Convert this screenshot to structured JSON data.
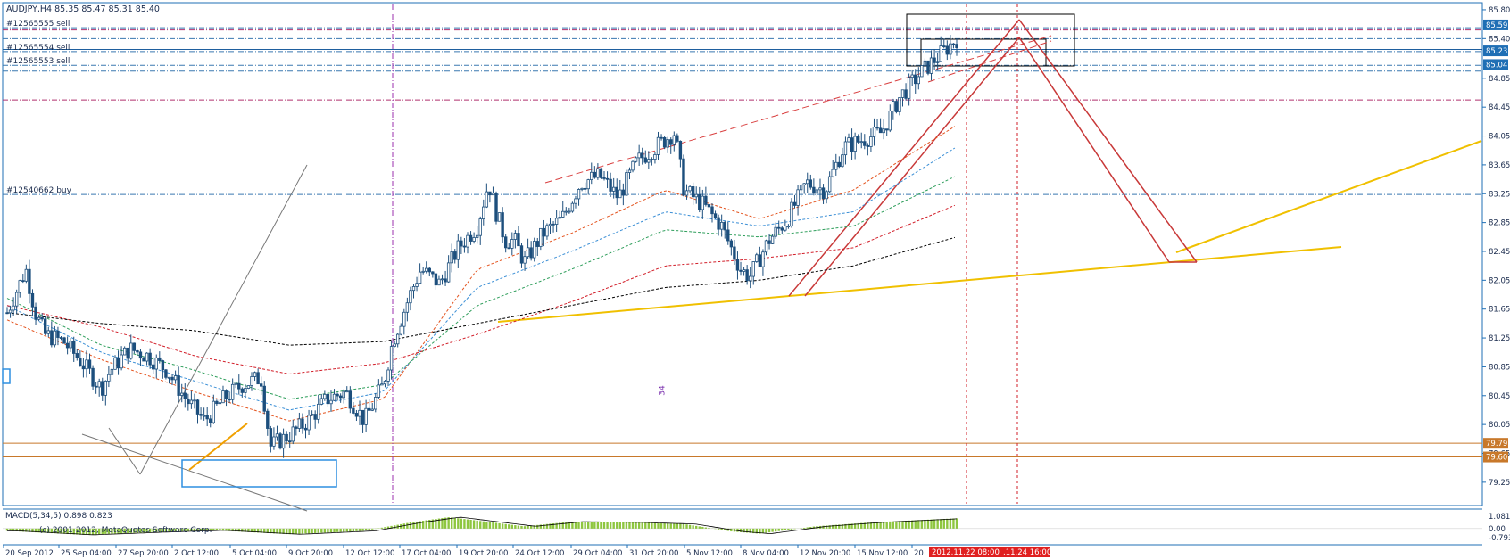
{
  "chart_data": {
    "type": "candlestick",
    "title": "AUDJPY,H4  85.35 85.47 85.31 85.40",
    "symbol": "AUDJPY",
    "timeframe": "H4",
    "ohlc_last": {
      "open": 85.35,
      "high": 85.47,
      "low": 85.31,
      "close": 85.4
    },
    "ylim": [
      79.1,
      85.75
    ],
    "grid": false,
    "y_ticks": [
      "85.80",
      "85.40",
      "84.85",
      "84.45",
      "84.05",
      "83.65",
      "83.25",
      "82.85",
      "82.45",
      "82.05",
      "81.65",
      "81.25",
      "80.85",
      "80.45",
      "80.05",
      "79.65",
      "79.25"
    ],
    "x_ticks": [
      "20 Sep 2012",
      "25 Sep 04:00",
      "27 Sep 20:00",
      "2 Oct 12:00",
      "5 Oct 04:00",
      "9 Oct 20:00",
      "12 Oct 12:00",
      "17 Oct 04:00",
      "19 Oct 20:00",
      "24 Oct 12:00",
      "29 Oct 04:00",
      "31 Oct 20:00",
      "5 Nov 12:00",
      "8 Nov 04:00",
      "12 Nov 20:00",
      "15 Nov 12:00",
      "20"
    ],
    "price_badges": [
      {
        "label": "85.59",
        "value": 85.59,
        "color": "#1f6fb5"
      },
      {
        "label": "85.23",
        "value": 85.23,
        "color": "#1f6fb5"
      },
      {
        "label": "85.04",
        "value": 85.04,
        "color": "#1f6fb5"
      },
      {
        "label": "79.79",
        "value": 79.79,
        "color": "#c8782a"
      },
      {
        "label": "79.60",
        "value": 79.6,
        "color": "#c8782a"
      }
    ],
    "order_lines": [
      {
        "label": "#12565555 sell",
        "value": 85.55
      },
      {
        "label": "#12565554 sell",
        "value": 85.22
      },
      {
        "label": "#12565553 sell",
        "value": 85.03
      },
      {
        "label": "#12540662 buy",
        "value": 83.24
      }
    ],
    "horizontal_levels": [
      {
        "value": 85.52,
        "style": "magenta-dashdot"
      },
      {
        "value": 85.4,
        "style": "blue-dashdot"
      },
      {
        "value": 85.25,
        "style": "blue-solid"
      },
      {
        "value": 84.95,
        "style": "blue-dashdot"
      },
      {
        "value": 84.55,
        "style": "magenta-dashdot"
      },
      {
        "value": 79.79,
        "style": "orange-solid"
      },
      {
        "value": 79.6,
        "style": "orange-solid"
      }
    ],
    "bars_count": 300,
    "close_path": [
      [
        0,
        81.6
      ],
      [
        5,
        81.9
      ],
      [
        10,
        82.2
      ],
      [
        15,
        81.6
      ],
      [
        20,
        81.3
      ],
      [
        30,
        81.2
      ],
      [
        40,
        80.9
      ],
      [
        50,
        80.55
      ],
      [
        55,
        80.8
      ],
      [
        65,
        81.1
      ],
      [
        75,
        81.0
      ],
      [
        85,
        80.8
      ],
      [
        95,
        80.4
      ],
      [
        105,
        80.1
      ],
      [
        115,
        80.4
      ],
      [
        125,
        80.6
      ],
      [
        135,
        80.7
      ],
      [
        140,
        79.75
      ],
      [
        150,
        79.9
      ],
      [
        160,
        80.1
      ],
      [
        170,
        80.4
      ],
      [
        180,
        80.5
      ],
      [
        190,
        80.1
      ],
      [
        200,
        80.6
      ],
      [
        205,
        81.2
      ],
      [
        215,
        81.9
      ],
      [
        220,
        82.2
      ],
      [
        230,
        82.0
      ],
      [
        240,
        82.5
      ],
      [
        250,
        82.8
      ],
      [
        256,
        83.4
      ],
      [
        260,
        83.0
      ],
      [
        265,
        82.6
      ],
      [
        270,
        82.6
      ],
      [
        275,
        82.3
      ],
      [
        285,
        82.7
      ],
      [
        295,
        82.9
      ],
      [
        305,
        83.4
      ],
      [
        315,
        83.5
      ],
      [
        325,
        83.2
      ],
      [
        335,
        83.7
      ],
      [
        345,
        83.9
      ],
      [
        355,
        84.1
      ],
      [
        360,
        83.3
      ],
      [
        370,
        83.1
      ],
      [
        380,
        82.8
      ],
      [
        390,
        82.2
      ],
      [
        395,
        82.1
      ],
      [
        405,
        82.6
      ],
      [
        415,
        82.9
      ],
      [
        425,
        83.4
      ],
      [
        435,
        83.3
      ],
      [
        445,
        83.9
      ],
      [
        455,
        84.0
      ],
      [
        465,
        84.1
      ],
      [
        475,
        84.6
      ],
      [
        485,
        84.9
      ],
      [
        495,
        85.15
      ],
      [
        505,
        85.4
      ]
    ],
    "moving_averages": [
      {
        "color": "#e4541f",
        "points": [
          [
            0,
            81.5
          ],
          [
            50,
            80.95
          ],
          [
            100,
            80.5
          ],
          [
            150,
            80.1
          ],
          [
            200,
            80.4
          ],
          [
            250,
            82.2
          ],
          [
            300,
            82.7
          ],
          [
            350,
            83.3
          ],
          [
            400,
            82.9
          ],
          [
            450,
            83.3
          ],
          [
            505,
            84.2
          ]
        ]
      },
      {
        "color": "#3b8fd6",
        "points": [
          [
            0,
            81.7
          ],
          [
            50,
            81.05
          ],
          [
            100,
            80.65
          ],
          [
            150,
            80.25
          ],
          [
            200,
            80.5
          ],
          [
            250,
            81.95
          ],
          [
            300,
            82.45
          ],
          [
            350,
            83.0
          ],
          [
            400,
            82.8
          ],
          [
            450,
            83.0
          ],
          [
            505,
            83.9
          ]
        ]
      },
      {
        "color": "#2e9e5b",
        "points": [
          [
            0,
            81.8
          ],
          [
            50,
            81.15
          ],
          [
            100,
            80.8
          ],
          [
            150,
            80.4
          ],
          [
            200,
            80.6
          ],
          [
            250,
            81.7
          ],
          [
            300,
            82.2
          ],
          [
            350,
            82.75
          ],
          [
            400,
            82.65
          ],
          [
            450,
            82.8
          ],
          [
            505,
            83.5
          ]
        ]
      },
      {
        "color": "#d21f2a",
        "points": [
          [
            0,
            81.7
          ],
          [
            50,
            81.4
          ],
          [
            100,
            81.0
          ],
          [
            150,
            80.75
          ],
          [
            200,
            80.9
          ],
          [
            250,
            81.3
          ],
          [
            300,
            81.75
          ],
          [
            350,
            82.25
          ],
          [
            400,
            82.35
          ],
          [
            450,
            82.5
          ],
          [
            505,
            83.1
          ]
        ]
      },
      {
        "color": "#000000",
        "points": [
          [
            0,
            81.6
          ],
          [
            50,
            81.45
          ],
          [
            100,
            81.35
          ],
          [
            150,
            81.15
          ],
          [
            200,
            81.2
          ],
          [
            250,
            81.45
          ],
          [
            300,
            81.7
          ],
          [
            350,
            81.95
          ],
          [
            400,
            82.05
          ],
          [
            450,
            82.25
          ],
          [
            505,
            82.65
          ]
        ]
      }
    ],
    "macd": {
      "label": "MACD(5,34,5)  0.898  0.823",
      "y_ticks": [
        "1.081",
        "0.00",
        "-0.793"
      ],
      "ylim": [
        -0.793,
        1.081
      ],
      "histogram_path": [
        [
          0,
          -0.2
        ],
        [
          40,
          -0.55
        ],
        [
          80,
          -0.3
        ],
        [
          110,
          -0.15
        ],
        [
          150,
          -0.5
        ],
        [
          190,
          -0.2
        ],
        [
          215,
          0.55
        ],
        [
          235,
          1.0
        ],
        [
          255,
          0.6
        ],
        [
          275,
          0.2
        ],
        [
          300,
          0.6
        ],
        [
          330,
          0.55
        ],
        [
          360,
          0.4
        ],
        [
          385,
          -0.25
        ],
        [
          400,
          -0.45
        ],
        [
          430,
          0.2
        ],
        [
          460,
          0.55
        ],
        [
          505,
          0.9
        ]
      ]
    },
    "footer_text": "(c) 2001-2012, MetaQuotes Software Corp.",
    "future_labels": [
      "2012.11.22 08:00",
      ".11.24 16:00"
    ],
    "markers": [
      {
        "label": "34",
        "bar": 207,
        "value": 80.45
      }
    ]
  }
}
